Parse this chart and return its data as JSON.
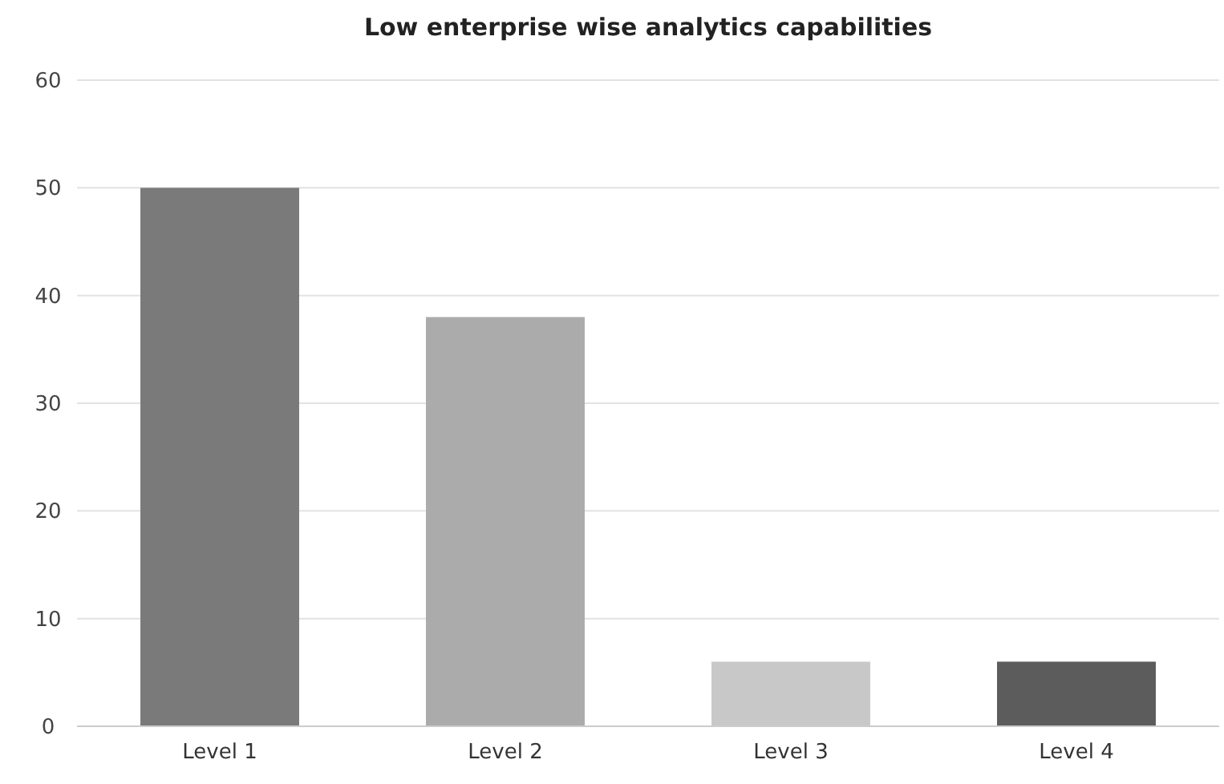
{
  "chart_data": {
    "type": "bar",
    "title": "Low enterprise wise analytics capabilities",
    "categories": [
      "Level 1",
      "Level 2",
      "Level 3",
      "Level 4"
    ],
    "values": [
      50,
      38,
      6,
      6
    ],
    "colors": [
      "#7a7a7a",
      "#ababab",
      "#c8c8c8",
      "#5c5c5c"
    ],
    "ylim": [
      0,
      60
    ],
    "yticks": [
      0,
      10,
      20,
      30,
      40,
      50,
      60
    ],
    "grid": "y"
  }
}
